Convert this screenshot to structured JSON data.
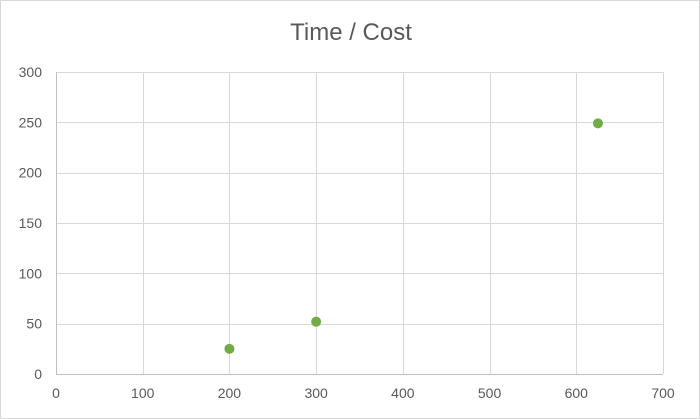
{
  "chart_data": {
    "type": "scatter",
    "title": "Time / Cost",
    "xlabel": "",
    "ylabel": "",
    "xlim": [
      0,
      700
    ],
    "ylim": [
      0,
      300
    ],
    "xticks": [
      0,
      100,
      200,
      300,
      400,
      500,
      600,
      700
    ],
    "yticks": [
      0,
      50,
      100,
      150,
      200,
      250,
      300
    ],
    "grid": true,
    "legend": "none",
    "series": [
      {
        "color": "#70ad47",
        "points": [
          {
            "x": 200,
            "y": 25
          },
          {
            "x": 300,
            "y": 52
          },
          {
            "x": 625,
            "y": 249
          }
        ]
      }
    ]
  }
}
